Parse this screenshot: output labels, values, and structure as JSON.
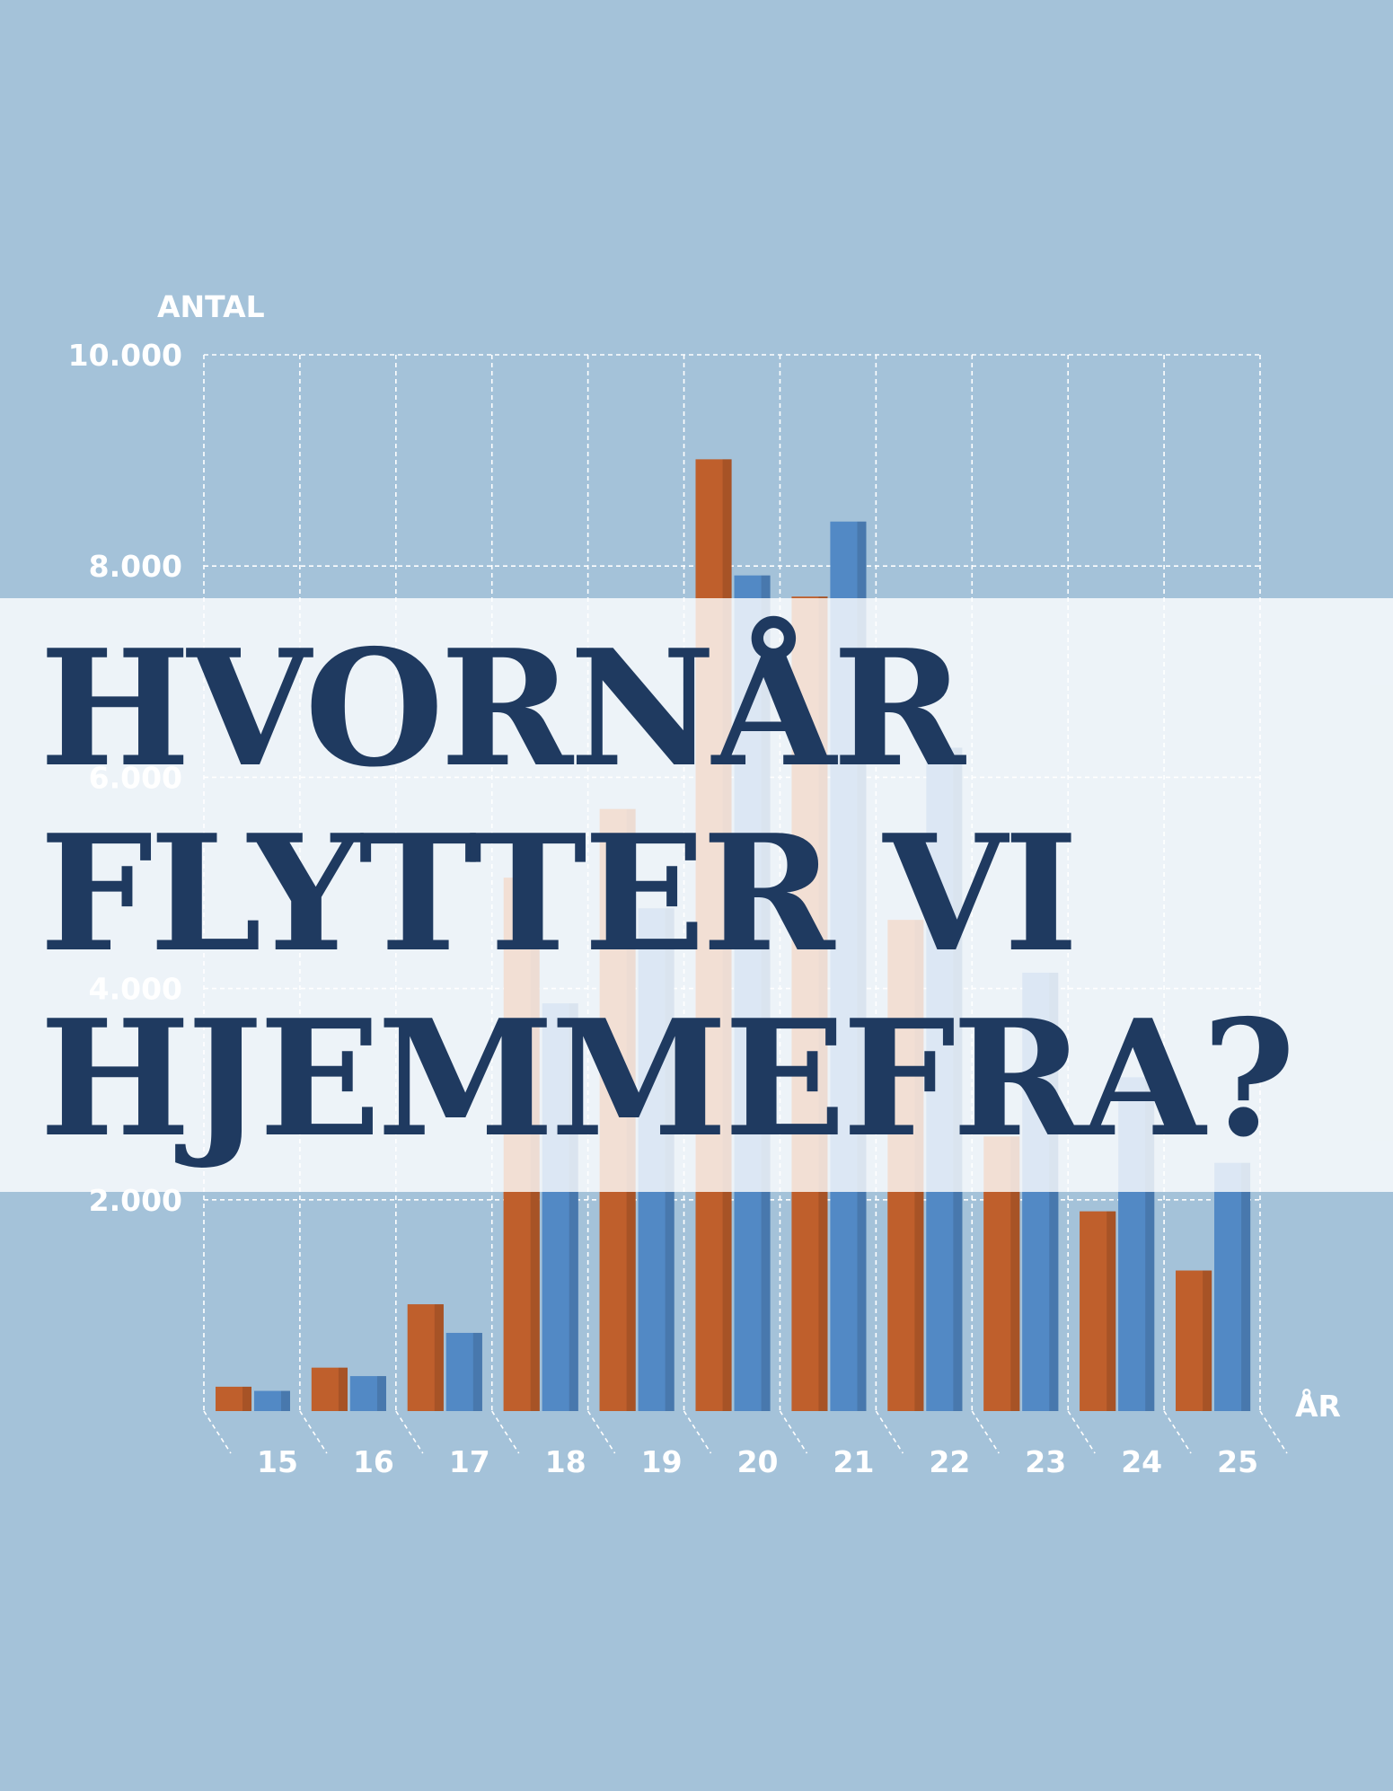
{
  "chart_data": {
    "type": "bar",
    "ylabel": "ANTAL",
    "xlabel": "ÅR",
    "ylim": [
      0,
      10000
    ],
    "yticks": [
      "10.000",
      "8.000",
      "6.000",
      "4.000",
      "2.000"
    ],
    "ytick_values": [
      10000,
      8000,
      6000,
      4000,
      2000
    ],
    "categories": [
      "15",
      "16",
      "17",
      "18",
      "19",
      "20",
      "21",
      "22",
      "23",
      "24",
      "25"
    ],
    "grid": true,
    "series": [
      {
        "color": "#bf5f2c",
        "values": [
          230,
          410,
          1010,
          5050,
          5700,
          9010,
          7710,
          4650,
          2600,
          1890,
          1330
        ]
      },
      {
        "color": "#5289c5",
        "values": [
          190,
          330,
          740,
          3860,
          4760,
          7910,
          8420,
          6280,
          4150,
          3160,
          2350
        ]
      }
    ]
  },
  "headline": "HVORNÅR\nFLYTTER VI\nHJEMMEFRA?",
  "colors": {
    "background": "#a4c2d9",
    "series_a": "#bf5f2c",
    "series_b": "#5289c5",
    "headline": "#1f3a60"
  }
}
